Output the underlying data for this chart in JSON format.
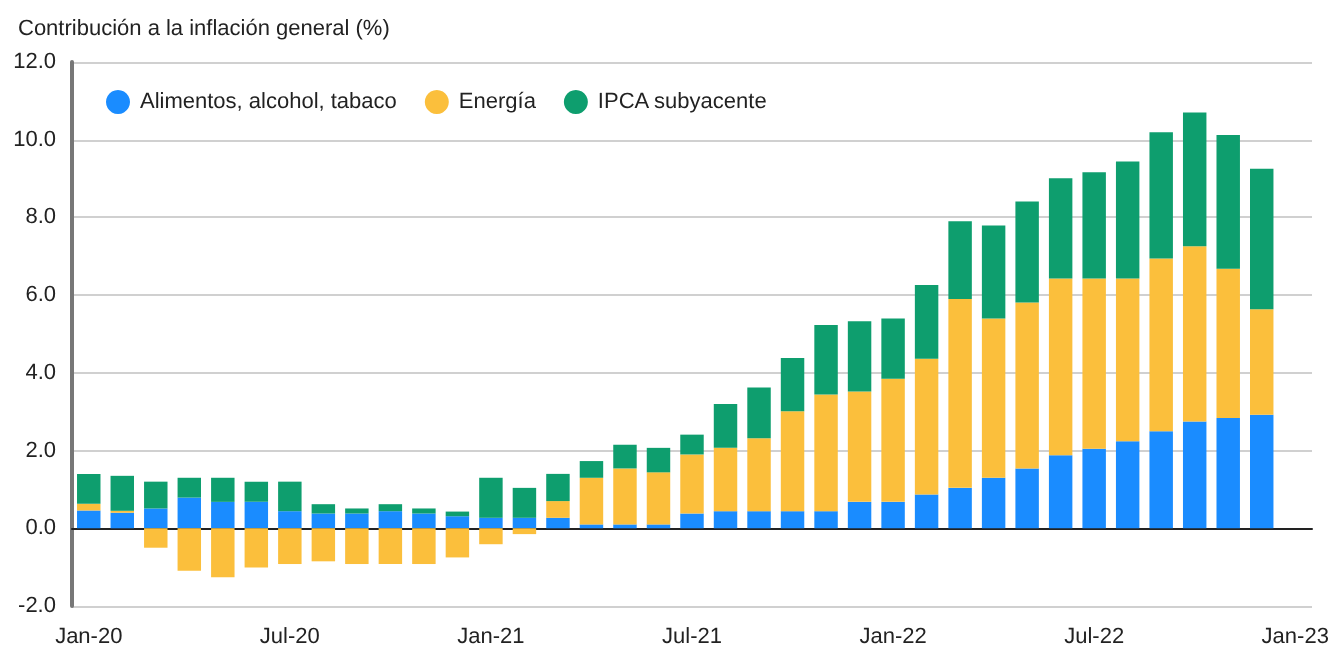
{
  "chart_data": {
    "type": "bar",
    "stacked": true,
    "title": "Contribución a la inflación general (%)",
    "categories": [
      "Jan-20",
      null,
      null,
      null,
      null,
      null,
      "Jul-20",
      null,
      null,
      null,
      null,
      null,
      "Jan-21",
      null,
      null,
      null,
      null,
      null,
      "Jul-21",
      null,
      null,
      null,
      null,
      null,
      "Jan-22",
      null,
      null,
      null,
      null,
      null,
      "Jul-22",
      null,
      null,
      null,
      null,
      null,
      "Jan-23"
    ],
    "series": [
      {
        "name": "Alimentos, alcohol, tabaco",
        "color": "#1a8cff",
        "values": [
          0.46,
          0.4,
          0.51,
          0.79,
          0.68,
          0.68,
          0.44,
          0.38,
          0.38,
          0.44,
          0.38,
          0.31,
          0.27,
          0.27,
          0.27,
          0.1,
          0.1,
          0.1,
          0.38,
          0.44,
          0.44,
          0.44,
          0.44,
          0.68,
          0.68,
          0.87,
          1.04,
          1.3,
          1.54,
          1.88,
          2.05,
          2.24,
          2.5,
          2.75,
          2.84,
          2.92,
          null
        ]
      },
      {
        "name": "Energía",
        "color": "#fbbf3c",
        "values": [
          0.17,
          0.05,
          -0.5,
          -1.09,
          -1.26,
          -1.01,
          -0.92,
          -0.85,
          -0.92,
          -0.92,
          -0.92,
          -0.75,
          -0.41,
          -0.15,
          0.43,
          1.2,
          1.44,
          1.34,
          1.52,
          1.63,
          1.88,
          2.57,
          3.0,
          2.84,
          3.17,
          3.49,
          4.86,
          4.1,
          4.27,
          4.55,
          4.38,
          4.19,
          4.44,
          4.51,
          3.84,
          2.72,
          null
        ]
      },
      {
        "name": "IPCA subyacente",
        "color": "#0e9e6e",
        "values": [
          0.77,
          0.9,
          0.69,
          0.51,
          0.62,
          0.52,
          0.76,
          0.24,
          0.13,
          0.18,
          0.13,
          0.12,
          1.03,
          0.77,
          0.7,
          0.43,
          0.61,
          0.63,
          0.51,
          1.13,
          1.3,
          1.37,
          1.79,
          1.81,
          1.55,
          1.9,
          2.0,
          2.39,
          2.6,
          2.58,
          2.73,
          3.01,
          3.25,
          3.44,
          3.44,
          3.61,
          null
        ]
      }
    ],
    "ylim": [
      -2,
      12
    ],
    "yticks": [
      {
        "value": -2,
        "label": "-2.0"
      },
      {
        "value": 0,
        "label": "0.0"
      },
      {
        "value": 2,
        "label": "2.0"
      },
      {
        "value": 4,
        "label": "4.0"
      },
      {
        "value": 6,
        "label": "6.0"
      },
      {
        "value": 8,
        "label": "8.0"
      },
      {
        "value": 10,
        "label": "10.0"
      },
      {
        "value": 12,
        "label": "12.0"
      }
    ],
    "grid": "y",
    "legend": "top left",
    "marker": "circle"
  }
}
